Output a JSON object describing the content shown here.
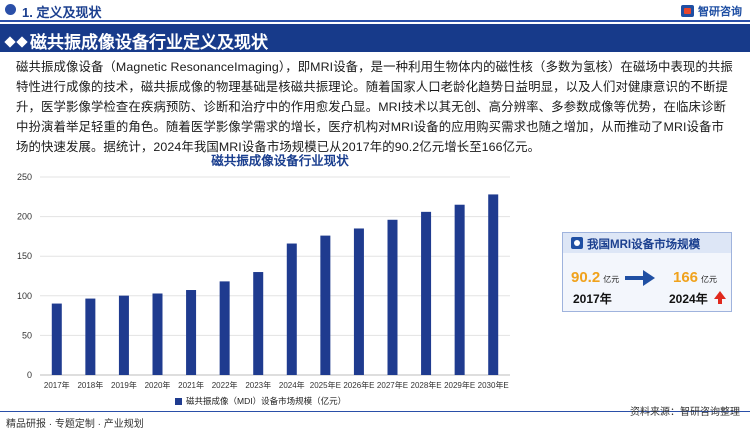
{
  "header": {
    "section_label": "1. 定义及现状",
    "logo_text": "智研咨询"
  },
  "title": "磁共振成像设备行业定义及现状",
  "paragraph": "磁共振成像设备（Magnetic ResonanceImaging），即MRI设备，是一种利用生物体内的磁性核（多数为氢核）在磁场中表现的共振特性进行成像的技术，磁共振成像的物理基础是核磁共振理论。随着国家人口老龄化趋势日益明显，以及人们对健康意识的不断提升，医学影像学检查在疾病预防、诊断和治疗中的作用愈发凸显。MRI技术以其无创、高分辨率、多参数成像等优势，在临床诊断中扮演着举足轻重的角色。随着医学影像学需求的增长，医疗机构对MRI设备的应用购买需求也随之增加，从而推动了MRI设备市场的快速发展。据统计，2024年我国MRI设备市场规模已从2017年的90.2亿元增长至166亿元。",
  "chart_data": {
    "type": "bar",
    "title": "磁共振成像设备行业现状",
    "categories": [
      "2017年",
      "2018年",
      "2019年",
      "2020年",
      "2021年",
      "2022年",
      "2023年",
      "2024年",
      "2025年E",
      "2026年E",
      "2027年E",
      "2028年E",
      "2029年E",
      "2030年E"
    ],
    "series": [
      {
        "name": "磁共振成像（MDI）设备市场规模（亿元）",
        "values": [
          90.2,
          96.5,
          100.2,
          102.9,
          107.3,
          118.2,
          130.0,
          166.0,
          176.0,
          185.0,
          196.0,
          206.0,
          215.0,
          228.0
        ]
      }
    ],
    "yticks": [
      0,
      50,
      100,
      150,
      200,
      250
    ],
    "ylim": [
      0,
      250
    ],
    "grid": true,
    "legend_position": "bottom",
    "bar_color": "#1f3b8f"
  },
  "card": {
    "title": "我国MRI设备市场规模",
    "from_value": "90.2",
    "from_unit": "亿元",
    "from_year": "2017年",
    "to_value": "166",
    "to_unit": "亿元",
    "to_year": "2024年"
  },
  "footer": {
    "left": "精品研报 · 专题定制 · 产业规划",
    "right": "资料来源：智研咨询整理"
  }
}
